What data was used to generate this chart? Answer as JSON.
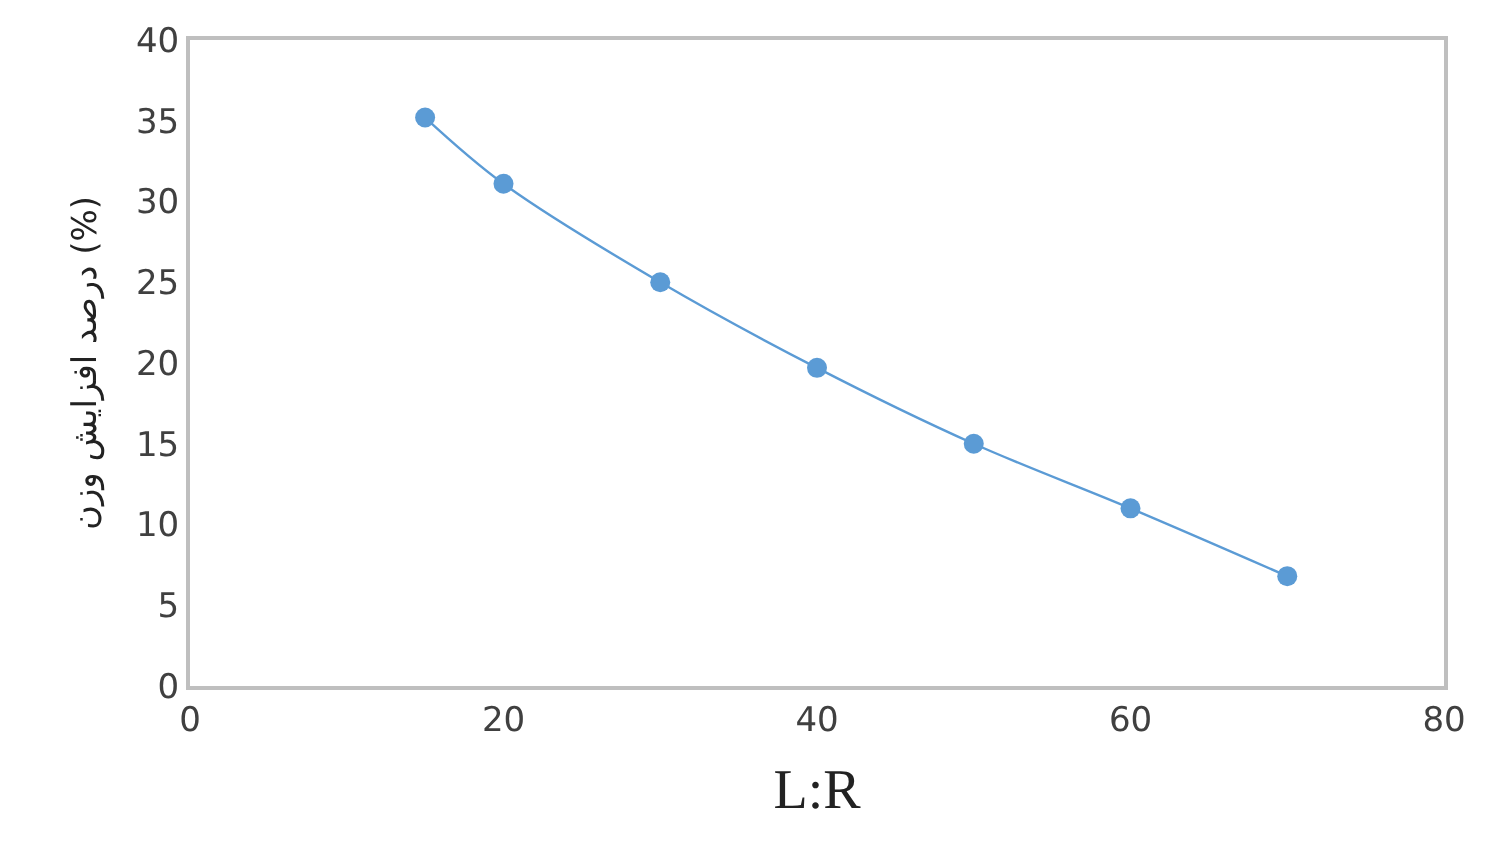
{
  "chart_data": {
    "type": "line",
    "xlabel": "L:R",
    "ylabel": "درصد افزایش وزن (%)",
    "x": [
      15,
      20,
      30,
      40,
      50,
      60,
      70
    ],
    "series": [
      {
        "color": "#5b9bd5",
        "values": [
          35.2,
          31.1,
          25.0,
          19.7,
          15.0,
          11.0,
          6.8
        ]
      }
    ],
    "xlim": [
      0,
      80
    ],
    "xticks": [
      0,
      20,
      40,
      60,
      80
    ],
    "ylim": [
      0,
      40
    ],
    "yticks": [
      0,
      5,
      10,
      15,
      20,
      25,
      30,
      35,
      40
    ],
    "marker": "circle",
    "line_style": "solid"
  }
}
